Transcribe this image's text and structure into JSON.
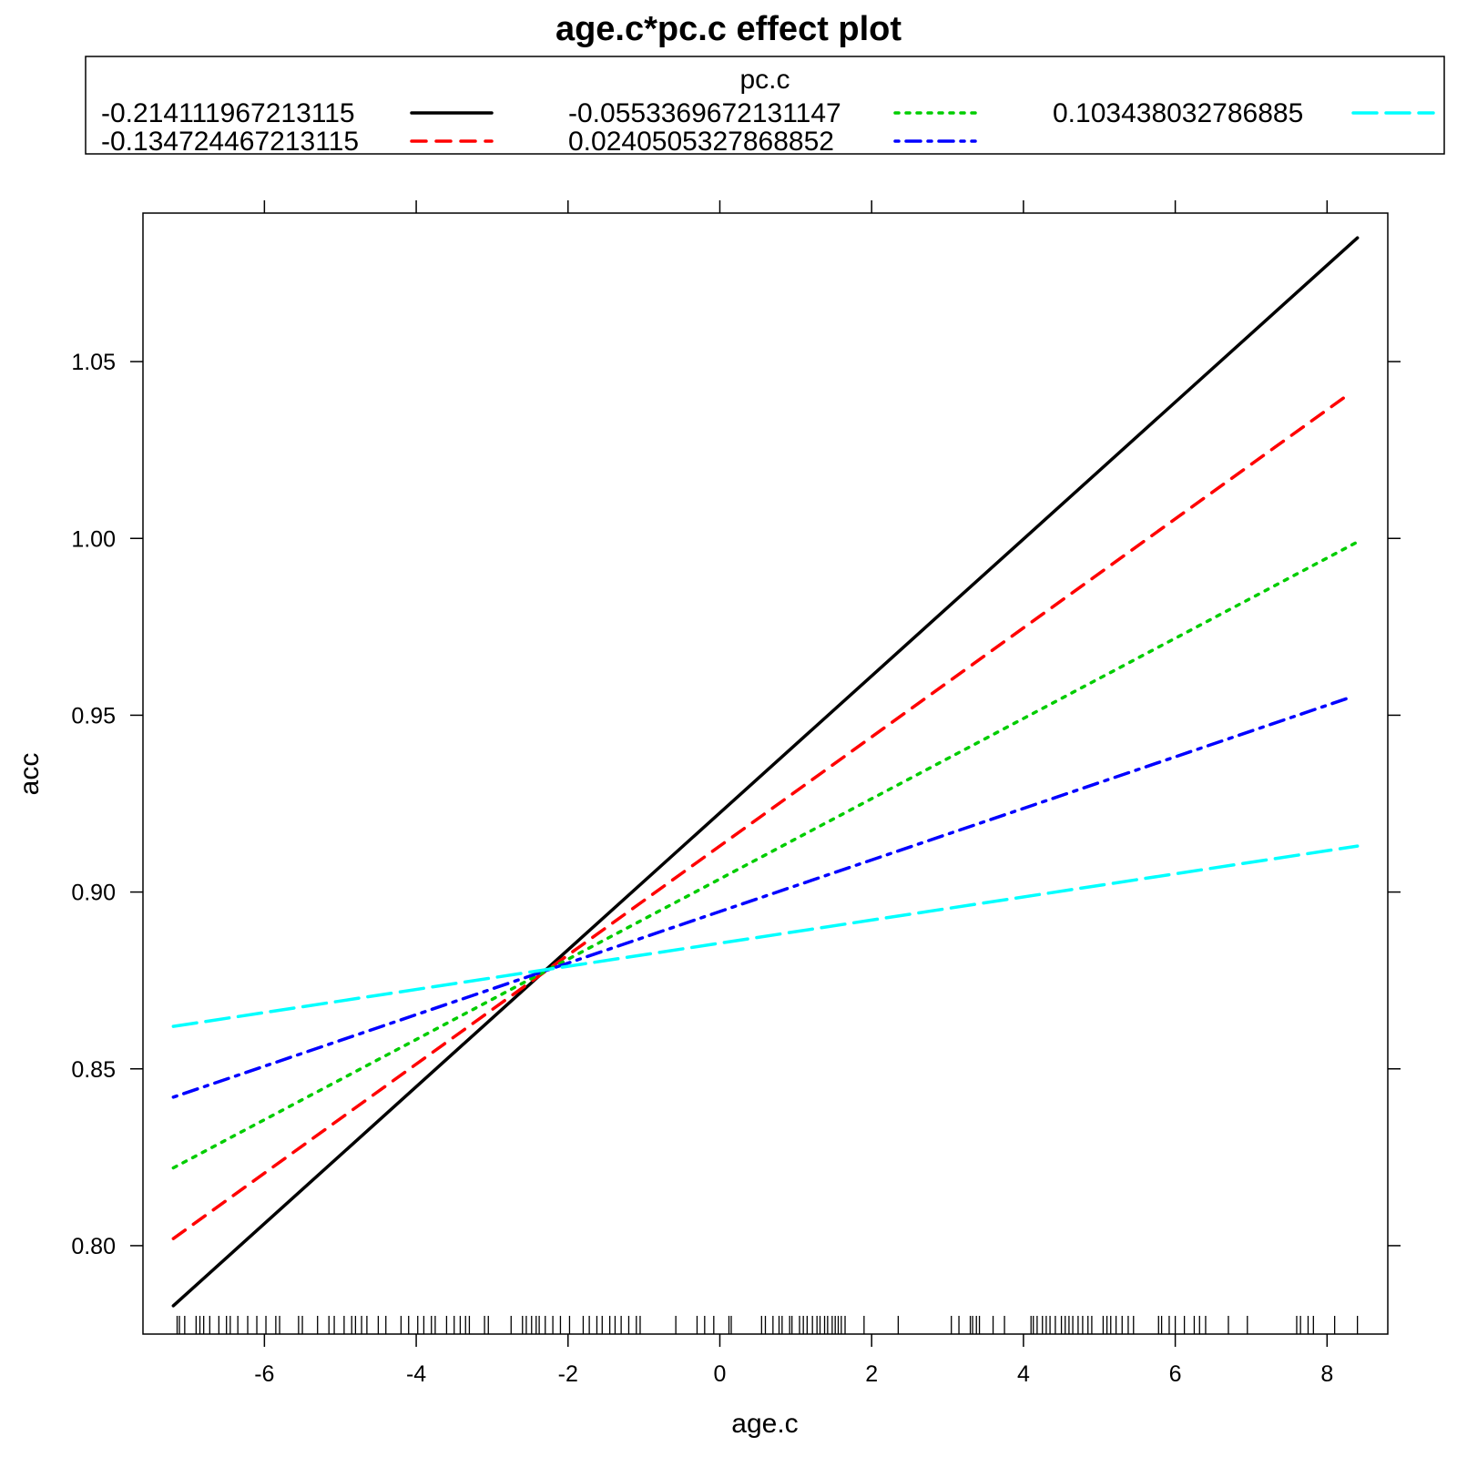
{
  "chart_data": {
    "type": "line",
    "title": "age.c*pc.c effect plot",
    "xlabel": "age.c",
    "ylabel": "acc",
    "xlim": [
      -7.6,
      8.8
    ],
    "ylim": [
      0.775,
      1.092
    ],
    "xticks": [
      -6,
      -4,
      -2,
      0,
      2,
      4,
      6,
      8
    ],
    "xtick_labels": [
      "-6",
      "-4",
      "-2",
      "0",
      "2",
      "4",
      "6",
      "8"
    ],
    "yticks": [
      0.8,
      0.85,
      0.9,
      0.95,
      1.0,
      1.05
    ],
    "ytick_labels": [
      "0.80",
      "0.85",
      "0.90",
      "0.95",
      "1.00",
      "1.05"
    ],
    "grid": false,
    "legend": {
      "title": "pc.c",
      "placement": "top"
    },
    "series": [
      {
        "name": "-0.214111967213115",
        "color": "#000000",
        "dash": "solid",
        "x": [
          -7.2,
          8.4
        ],
        "y": [
          0.783,
          1.085
        ]
      },
      {
        "name": "-0.134724467213115",
        "color": "#ff0000",
        "dash": "dashed",
        "x": [
          -7.2,
          8.3
        ],
        "y": [
          0.802,
          1.041
        ]
      },
      {
        "name": "-0.0553369672131147",
        "color": "#00cd00",
        "dash": "dotted",
        "x": [
          -7.2,
          8.4
        ],
        "y": [
          0.822,
          0.999
        ]
      },
      {
        "name": "0.0240505327868852",
        "color": "#0000ff",
        "dash": "dotdash",
        "x": [
          -7.2,
          8.3
        ],
        "y": [
          0.842,
          0.955
        ]
      },
      {
        "name": "0.103438032786885",
        "color": "#00ffff",
        "dash": "longdash",
        "x": [
          -7.2,
          8.4
        ],
        "y": [
          0.862,
          0.913
        ]
      }
    ],
    "rug_x": [
      -7.15,
      -7.12,
      -7.05,
      -6.9,
      -6.85,
      -6.8,
      -6.72,
      -6.6,
      -6.5,
      -6.45,
      -6.35,
      -6.22,
      -6.1,
      -5.98,
      -5.85,
      -5.8,
      -5.55,
      -5.5,
      -5.3,
      -5.15,
      -5.08,
      -4.95,
      -4.85,
      -4.8,
      -4.72,
      -4.65,
      -4.5,
      -4.4,
      -4.2,
      -4.1,
      -3.98,
      -3.9,
      -3.8,
      -3.75,
      -3.6,
      -3.5,
      -3.42,
      -3.35,
      -3.3,
      -3.1,
      -3.05,
      -2.75,
      -2.6,
      -2.55,
      -2.48,
      -2.42,
      -2.38,
      -2.3,
      -2.2,
      -2.1,
      -1.98,
      -1.8,
      -1.72,
      -1.62,
      -1.55,
      -1.45,
      -1.38,
      -1.3,
      -1.2,
      -1.1,
      -1.05,
      -0.58,
      -0.3,
      -0.2,
      -0.08,
      0.12,
      0.15,
      0.55,
      0.6,
      0.7,
      0.78,
      0.82,
      0.92,
      0.95,
      1.05,
      1.1,
      1.15,
      1.22,
      1.28,
      1.32,
      1.38,
      1.42,
      1.48,
      1.52,
      1.56,
      1.6,
      1.65,
      1.9,
      2.35,
      3.05,
      3.15,
      3.3,
      3.33,
      3.38,
      3.42,
      3.6,
      3.75,
      4.1,
      4.13,
      4.18,
      4.25,
      4.3,
      4.35,
      4.42,
      4.5,
      4.55,
      4.6,
      4.65,
      4.72,
      4.78,
      4.85,
      4.9,
      5.05,
      5.1,
      5.15,
      5.22,
      5.3,
      5.38,
      5.45,
      5.78,
      5.82,
      5.92,
      6.0,
      6.12,
      6.25,
      6.32,
      6.4,
      6.7,
      6.95,
      7.6,
      7.65,
      7.75,
      7.82,
      8.1,
      8.4
    ]
  }
}
